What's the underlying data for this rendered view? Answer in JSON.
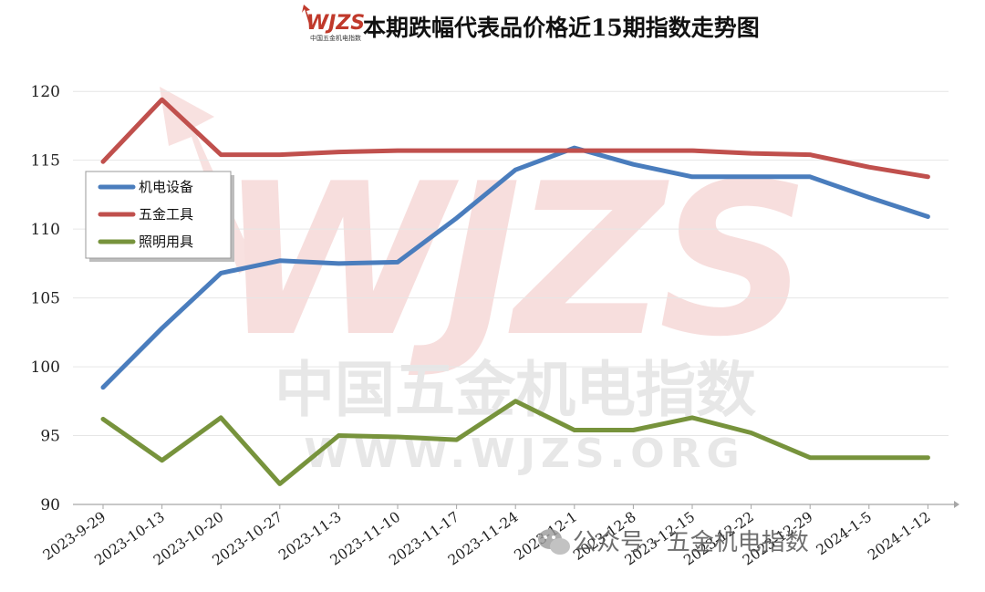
{
  "header": {
    "logo_text": "WJZS",
    "logo_subtext": "中国五金机电指数",
    "title": "本期跌幅代表品价格近15期指数走势图"
  },
  "watermark": {
    "logo_text": "WJZS",
    "name": "中国五金机电指数",
    "url": "WWW.WJZS.ORG"
  },
  "footer": {
    "account": "公众号 · 五金机电指数",
    "chat_icon": "wechat-icon"
  },
  "colors": {
    "机电设备": "#4a7dbd",
    "五金工具": "#c0504d",
    "照明用具": "#77933c",
    "watermark": "#e8a6a4"
  },
  "chart_data": {
    "type": "line",
    "title": "本期跌幅代表品价格近15期指数走势图",
    "xlabel": "",
    "ylabel": "",
    "ylim": [
      90,
      122
    ],
    "yticks": [
      90,
      95,
      100,
      105,
      110,
      115,
      120
    ],
    "grid": true,
    "legend": "left-middle",
    "x": [
      "2023-9-29",
      "2023-10-13",
      "2023-10-20",
      "2023-10-27",
      "2023-11-3",
      "2023-11-10",
      "2023-11-17",
      "2023-11-24",
      "2023-12-1",
      "2023-12-8",
      "2023-12-15",
      "2023-12-22",
      "2023-12-29",
      "2024-1-5",
      "2024-1-12"
    ],
    "series": [
      {
        "name": "机电设备",
        "values": [
          98.5,
          102.8,
          106.8,
          107.7,
          107.5,
          107.6,
          110.8,
          114.3,
          115.9,
          114.7,
          113.8,
          113.8,
          113.8,
          112.3,
          110.9
        ]
      },
      {
        "name": "五金工具",
        "values": [
          114.9,
          119.4,
          115.4,
          115.4,
          115.6,
          115.7,
          115.7,
          115.7,
          115.7,
          115.7,
          115.7,
          115.5,
          115.4,
          114.5,
          113.8
        ]
      },
      {
        "name": "照明用具",
        "values": [
          96.2,
          93.2,
          96.3,
          91.5,
          95.0,
          94.9,
          94.7,
          97.5,
          95.4,
          95.4,
          96.3,
          95.2,
          93.4,
          93.4,
          93.4
        ]
      }
    ]
  }
}
